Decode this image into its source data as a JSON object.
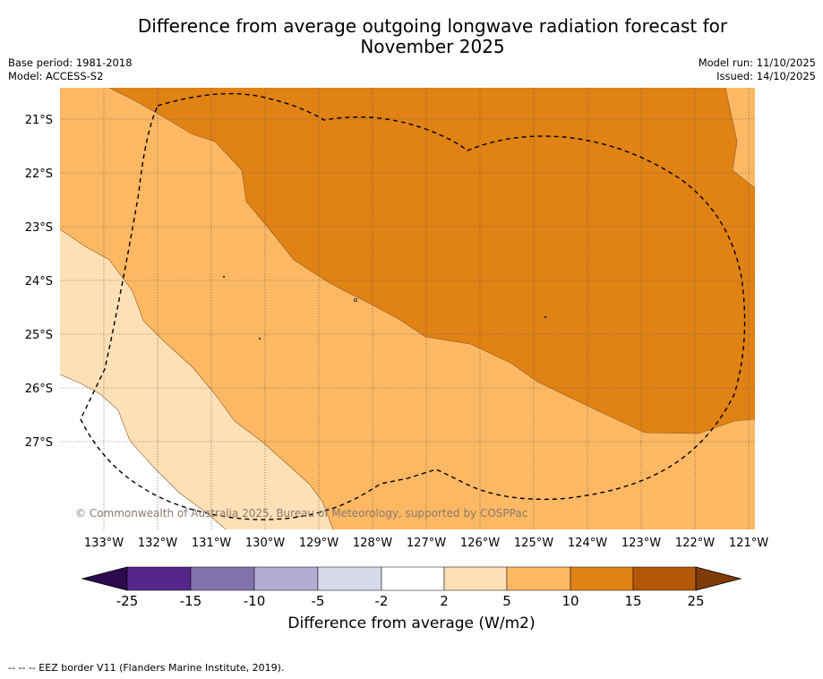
{
  "title_line1": "Difference from average outgoing longwave radiation forecast for",
  "title_line2": "November 2025",
  "meta_left": {
    "base_period": "Base period: 1981-2018",
    "model": "Model: ACCESS-S2"
  },
  "meta_right": {
    "model_run": "Model run: 11/10/2025",
    "issued": "Issued: 14/10/2025"
  },
  "copyright": "© Commonwealth of Australia 2025, Bureau of Meteorology, supported by COSPPac",
  "lat_labels": [
    "21°S",
    "22°S",
    "23°S",
    "24°S",
    "25°S",
    "26°S",
    "27°S"
  ],
  "lon_labels": [
    "133°W",
    "132°W",
    "131°W",
    "130°W",
    "129°W",
    "128°W",
    "127°W",
    "126°W",
    "125°W",
    "124°W",
    "123°W",
    "122°W",
    "121°W"
  ],
  "colorbar": {
    "title": "Difference from average (W/m2)",
    "tick_labels": [
      "-25",
      "-15",
      "-10",
      "-5",
      "-2",
      "2",
      "5",
      "10",
      "15",
      "25"
    ],
    "min_extend_color": "#2d0a4e",
    "max_extend_color": "#7f3b08",
    "bins": [
      {
        "range": "-25 to -15",
        "color": "#542788"
      },
      {
        "range": "-15 to -10",
        "color": "#8073ac"
      },
      {
        "range": "-10 to -5",
        "color": "#b2abd2"
      },
      {
        "range": "-5 to -2",
        "color": "#d8daeb"
      },
      {
        "range": "-2 to 2",
        "color": "#ffffff"
      },
      {
        "range": "2 to 5",
        "color": "#fee0b6"
      },
      {
        "range": "5 to 10",
        "color": "#fdb863"
      },
      {
        "range": "10 to 15",
        "color": "#e08214"
      },
      {
        "range": "15 to 25",
        "color": "#b35806"
      }
    ]
  },
  "footer": "--  --  -- EEZ border V11 (Flanders Marine Institute, 2019)."
}
